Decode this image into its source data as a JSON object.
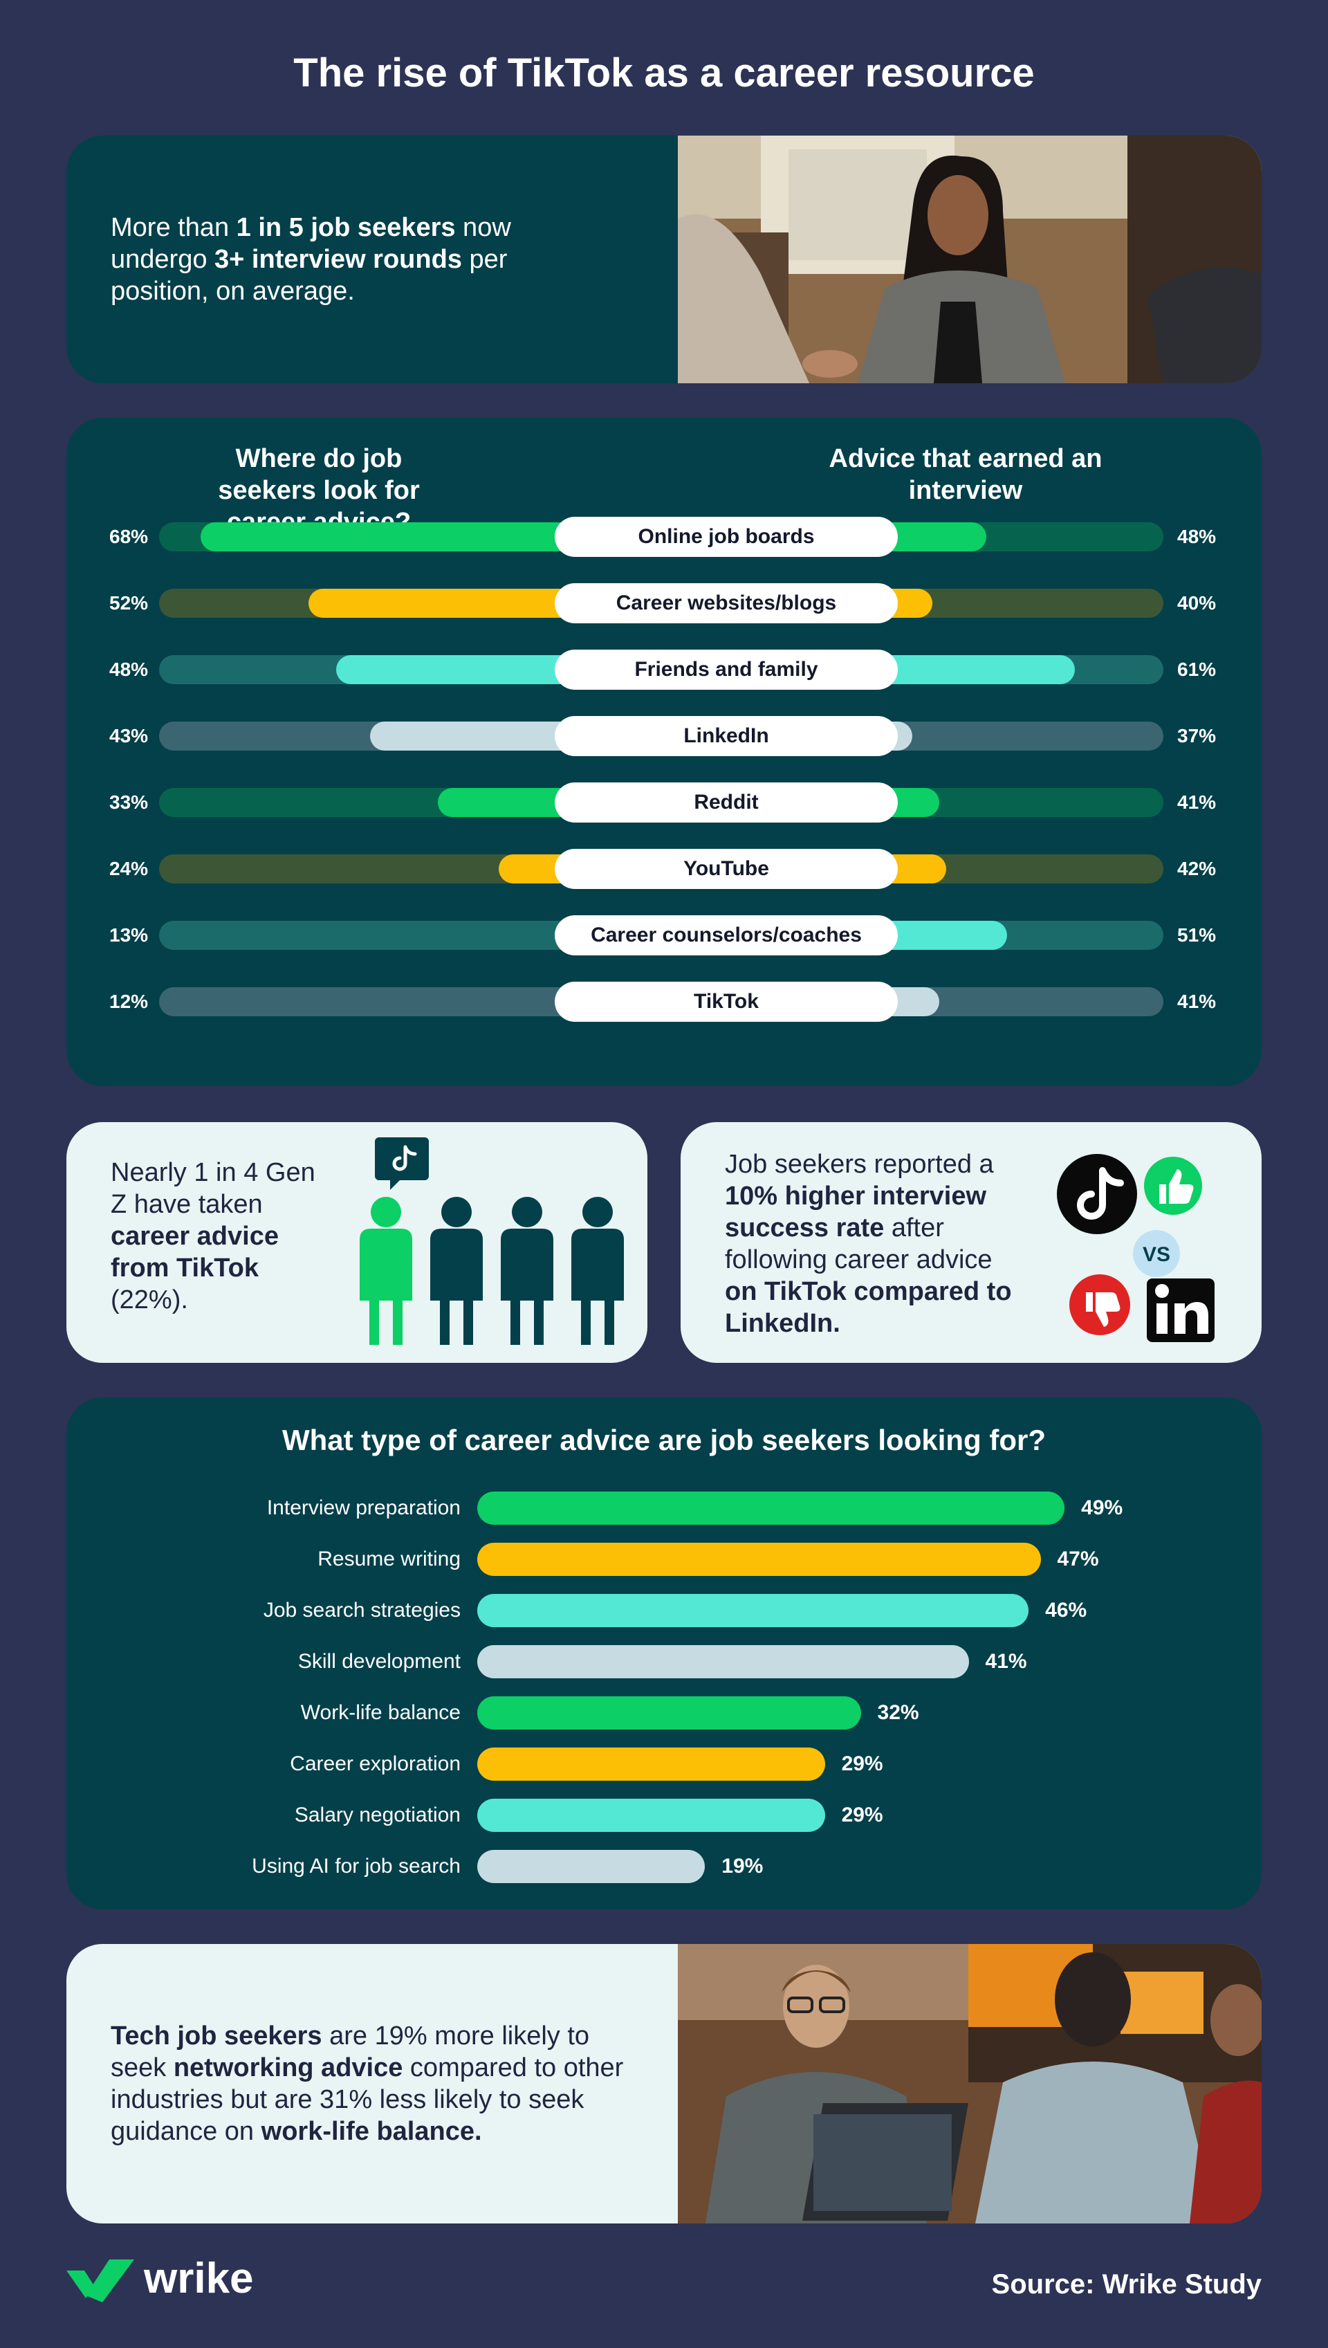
{
  "title": "The rise of TikTok as a career resource",
  "stat1": {
    "t1": "More than ",
    "b1": "1 in 5 job seekers",
    "t2": " now undergo ",
    "b2": "3+ interview rounds",
    "t3": " per position, on average."
  },
  "chart1": {
    "left_title": "Where do job seekers look for career advice?",
    "right_title": "Advice that earned an interview"
  },
  "stat2": {
    "t1": "Nearly 1 in 4 Gen Z have taken ",
    "b1": "career advice from TikTok",
    "t2": " (22%)."
  },
  "stat3": {
    "t1": "Job seekers reported a ",
    "b1": "10% higher interview success rate",
    "t2": " after following career advice ",
    "b2": "on TikTok compared to LinkedIn.",
    "vs": "VS"
  },
  "chart2": {
    "title": "What type of career advice are job seekers looking for?"
  },
  "stat4": {
    "b1": "Tech job seekers",
    "t1": " are 19% more likely to seek ",
    "b2": "networking advice",
    "t2": " compared to other industries but are 31% less likely to seek guidance on ",
    "b3": "work-life balance."
  },
  "logo": "wrike",
  "source": "Source: Wrike Study",
  "chart_data": [
    {
      "type": "bar",
      "title": "Where do job seekers look for career advice?",
      "categories": [
        "Online job boards",
        "Career websites/blogs",
        "Friends and family",
        "LinkedIn",
        "Reddit",
        "YouTube",
        "Career counselors/coaches",
        "TikTok"
      ],
      "series": [
        {
          "name": "Where do job seekers look for career advice?",
          "values": [
            68,
            52,
            48,
            43,
            33,
            24,
            13,
            12
          ]
        },
        {
          "name": "Advice that earned an interview",
          "values": [
            48,
            40,
            61,
            37,
            41,
            42,
            51,
            41
          ]
        }
      ],
      "value_labels_left": [
        "68%",
        "52%",
        "48%",
        "43%",
        "33%",
        "24%",
        "13%",
        "12%"
      ],
      "value_labels_right": [
        "48%",
        "40%",
        "61%",
        "37%",
        "41%",
        "42%",
        "51%",
        "41%"
      ],
      "colors": [
        "#0ccf66",
        "#fcbf06",
        "#52e8d4",
        "#c6dbe2"
      ],
      "track_colors": [
        "#06644e",
        "#3d5736",
        "#1b6b6b",
        "#3b6570"
      ]
    },
    {
      "type": "bar",
      "title": "What type of career advice are job seekers looking for?",
      "categories": [
        "Interview preparation",
        "Resume writing",
        "Job search strategies",
        "Skill development",
        "Work-life balance",
        "Career exploration",
        "Salary negotiation",
        "Using AI for job search"
      ],
      "values": [
        49,
        47,
        46,
        41,
        32,
        29,
        29,
        19
      ],
      "value_labels": [
        "49%",
        "47%",
        "46%",
        "41%",
        "32%",
        "29%",
        "29%",
        "19%"
      ],
      "colors": [
        "#0ccf66",
        "#fcbf06",
        "#52e8d4",
        "#c6dbe2"
      ]
    }
  ],
  "colors": {
    "background": "#2d3354",
    "card_dark": "#04404a",
    "card_light": "#e9f4f4",
    "green": "#0ccf66",
    "yellow": "#fcbf06",
    "teal": "#52e8d4",
    "grey": "#c6dbe2"
  }
}
